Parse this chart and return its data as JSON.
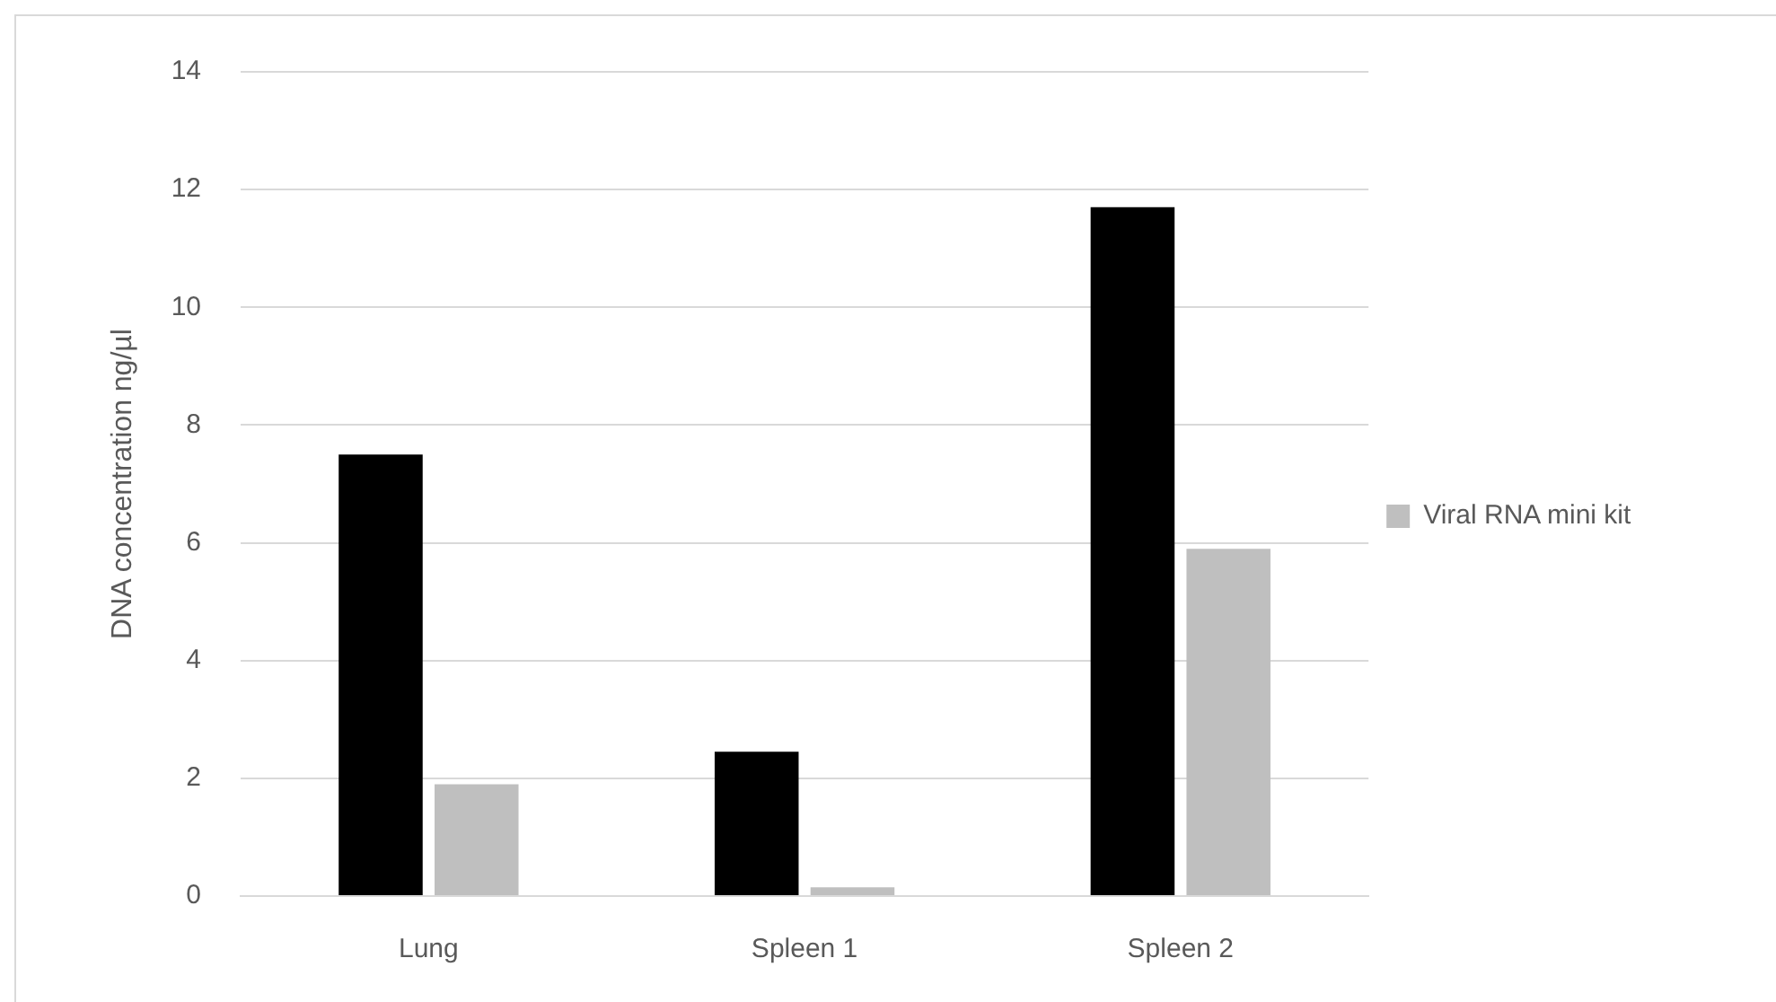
{
  "chart_data": {
    "type": "bar",
    "ylabel": "DNA concentration ng/µl",
    "categories": [
      "Lung",
      "Spleen 1",
      "Spleen 2"
    ],
    "series": [
      {
        "color": "#000000",
        "values": [
          7.5,
          2.45,
          11.7
        ]
      },
      {
        "name": "Viral RNA mini kit",
        "color": "#bfbfbf",
        "values": [
          1.9,
          0.15,
          5.9
        ]
      }
    ],
    "ylim": [
      0,
      14
    ],
    "yticks": [
      0,
      2,
      4,
      6,
      8,
      10,
      12,
      14
    ],
    "grid": "y",
    "legend": "right"
  }
}
